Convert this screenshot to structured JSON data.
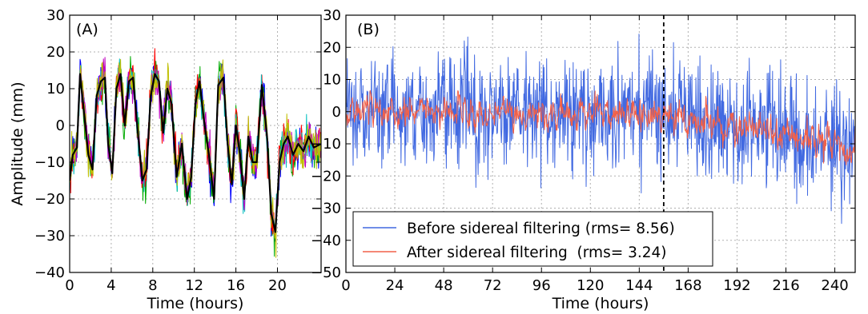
{
  "chart_data": [
    {
      "type": "line",
      "panel_label": "(A)",
      "xlabel": "Time (hours)",
      "ylabel": "Amplitude (mm)",
      "xlim": [
        0,
        24.2
      ],
      "ylim": [
        -40,
        30
      ],
      "xticks": [
        0,
        4,
        8,
        12,
        16,
        20
      ],
      "yticks": [
        -40,
        -30,
        -20,
        -10,
        0,
        10,
        20,
        30
      ],
      "grid": true,
      "series_colors": [
        "#0000ff",
        "#00aa00",
        "#ff0000",
        "#00bfbf",
        "#bf00bf",
        "#bfbf00",
        "#000000"
      ],
      "mean_curve_anchors": [
        [
          0,
          -15
        ],
        [
          0.3,
          -8
        ],
        [
          0.7,
          -6
        ],
        [
          1.0,
          14
        ],
        [
          1.4,
          3
        ],
        [
          1.8,
          -8
        ],
        [
          2.2,
          -12
        ],
        [
          2.6,
          8
        ],
        [
          3.0,
          12
        ],
        [
          3.4,
          13
        ],
        [
          3.7,
          -5
        ],
        [
          4.1,
          -13
        ],
        [
          4.5,
          10
        ],
        [
          4.9,
          14
        ],
        [
          5.3,
          0
        ],
        [
          5.7,
          12
        ],
        [
          6.1,
          13
        ],
        [
          6.6,
          -3
        ],
        [
          7.0,
          -15
        ],
        [
          7.4,
          -12
        ],
        [
          7.8,
          8
        ],
        [
          8.2,
          14
        ],
        [
          8.6,
          12
        ],
        [
          9.0,
          -2
        ],
        [
          9.4,
          10
        ],
        [
          9.8,
          6
        ],
        [
          10.3,
          -14
        ],
        [
          10.8,
          -5
        ],
        [
          11.3,
          -20
        ],
        [
          11.7,
          -14
        ],
        [
          12.1,
          6
        ],
        [
          12.5,
          12
        ],
        [
          12.9,
          2
        ],
        [
          13.4,
          -8
        ],
        [
          13.9,
          -20
        ],
        [
          14.3,
          11
        ],
        [
          14.8,
          13
        ],
        [
          15.2,
          -5
        ],
        [
          15.6,
          -16
        ],
        [
          16.0,
          0
        ],
        [
          16.4,
          -8
        ],
        [
          16.8,
          -20
        ],
        [
          17.2,
          -3
        ],
        [
          17.6,
          -10
        ],
        [
          18.0,
          -10
        ],
        [
          18.5,
          11
        ],
        [
          19.0,
          -3
        ],
        [
          19.4,
          -24
        ],
        [
          19.8,
          -29
        ],
        [
          20.2,
          -10
        ],
        [
          20.6,
          -5
        ],
        [
          21.0,
          -3
        ],
        [
          21.5,
          -8
        ],
        [
          22.0,
          -5
        ],
        [
          22.5,
          -7
        ],
        [
          23.0,
          -3
        ],
        [
          23.5,
          -6
        ],
        [
          24.2,
          -5
        ]
      ]
    },
    {
      "type": "line",
      "panel_label": "(B)",
      "xlabel": "Time (hours)",
      "ylabel": "",
      "xlim": [
        0,
        250
      ],
      "ylim": [
        -50,
        30
      ],
      "xticks": [
        0,
        24,
        48,
        72,
        96,
        120,
        144,
        168,
        192,
        216,
        240
      ],
      "yticks": [
        -50,
        -40,
        -30,
        -20,
        -10,
        0,
        10,
        20,
        30
      ],
      "grid": true,
      "vline_x": 156,
      "legend_position": "bottom-left",
      "series": [
        {
          "name": "Before sidereal filtering (rms= 8.56)",
          "color": "#4169e1",
          "rms": 8.56,
          "trend_anchors": [
            [
              0,
              0
            ],
            [
              144,
              0
            ],
            [
              170,
              -3
            ],
            [
              200,
              -5
            ],
            [
              216,
              -7
            ],
            [
              235,
              -10
            ],
            [
              250,
              -12
            ]
          ]
        },
        {
          "name": "After sidereal filtering  (rms= 3.24)",
          "color": "#f26149",
          "rms": 3.24,
          "trend_anchors": [
            [
              0,
              0
            ],
            [
              144,
              0
            ],
            [
              170,
              -3
            ],
            [
              200,
              -5
            ],
            [
              216,
              -7
            ],
            [
              235,
              -10
            ],
            [
              250,
              -12
            ]
          ]
        }
      ]
    }
  ]
}
